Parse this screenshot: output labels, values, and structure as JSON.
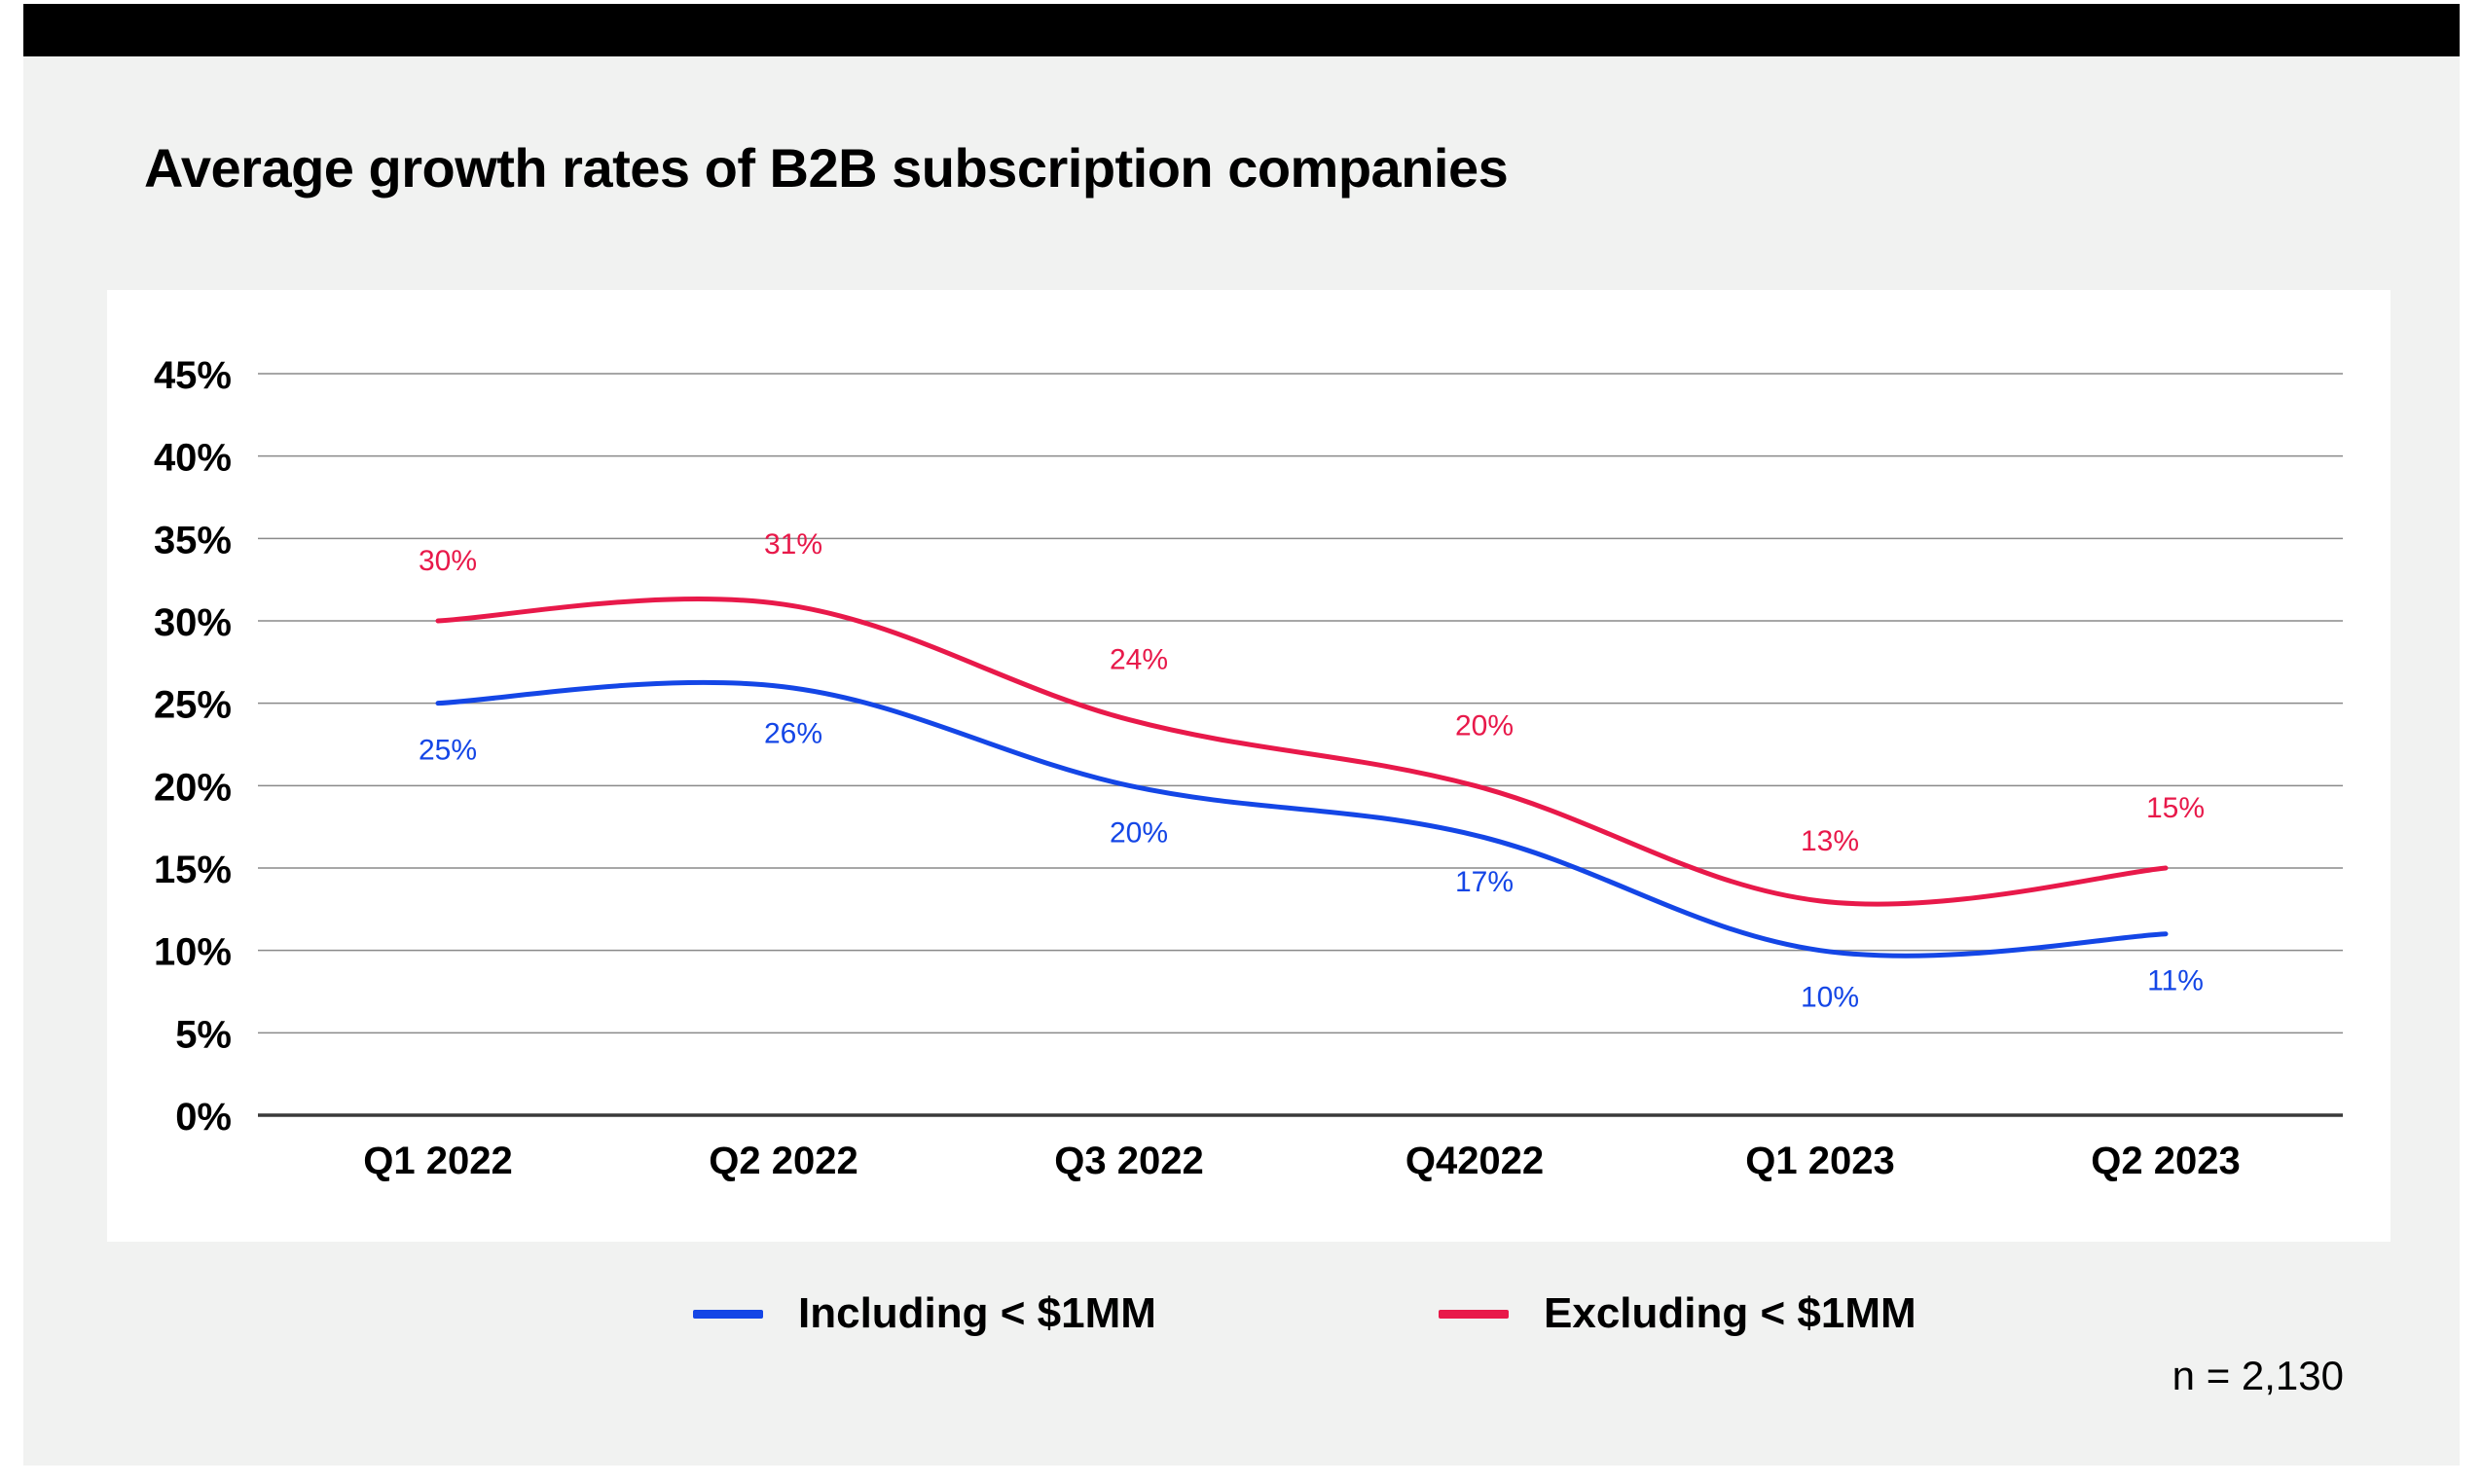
{
  "title": "Average growth rates of B2B subscription companies",
  "footnote": "n = 2,130",
  "legend": [
    {
      "label": "Including < $1MM",
      "color": "#1446e6"
    },
    {
      "label": "Excluding < $1MM",
      "color": "#e8194a"
    }
  ],
  "chart_data": {
    "type": "line",
    "categories": [
      "Q1 2022",
      "Q2 2022",
      "Q3 2022",
      "Q42022",
      "Q1 2023",
      "Q2 2023"
    ],
    "y_ticks": [
      "0%",
      "5%",
      "10%",
      "15%",
      "20%",
      "25%",
      "30%",
      "35%",
      "40%",
      "45%"
    ],
    "ylim": [
      0,
      45
    ],
    "grid": true,
    "legend_position": "bottom",
    "series": [
      {
        "name": "Including < $1MM",
        "color": "#1446e6",
        "values": [
          25,
          26,
          20,
          17,
          10,
          11
        ],
        "labels": [
          "25%",
          "26%",
          "20%",
          "17%",
          "10%",
          "11%"
        ],
        "label_position": "below"
      },
      {
        "name": "Excluding < $1MM",
        "color": "#e8194a",
        "values": [
          30,
          31,
          24,
          20,
          13,
          15
        ],
        "labels": [
          "30%",
          "31%",
          "24%",
          "20%",
          "13%",
          "15%"
        ],
        "label_position": "above"
      }
    ]
  }
}
